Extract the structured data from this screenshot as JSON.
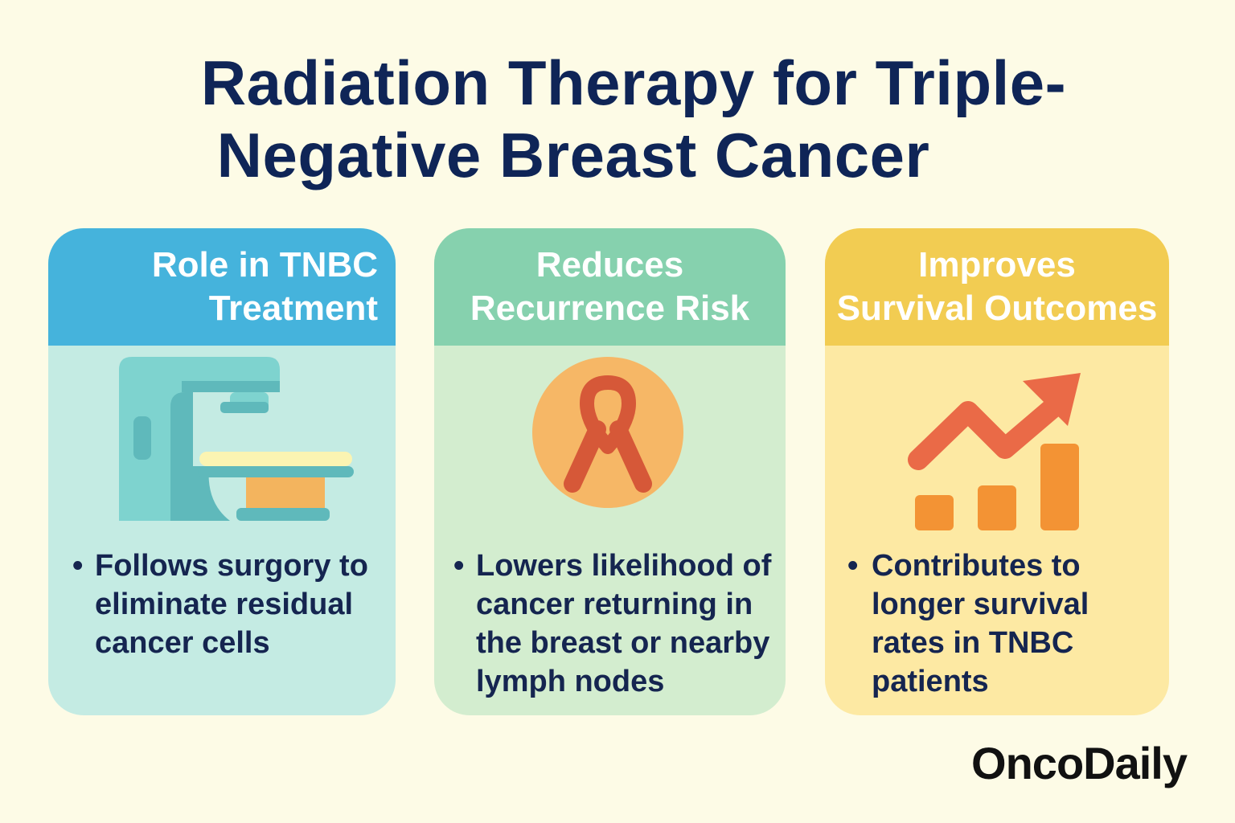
{
  "title": {
    "line1": "Radiation Therapy for Triple-",
    "line2": "Negative Breast Cancer"
  },
  "cards": [
    {
      "heading_line1": "Role in TNBC",
      "heading_line2": "Treatment",
      "icon": "radiotherapy-machine-icon",
      "bullet": "Follows surgory to eliminate residual cancer cells"
    },
    {
      "heading_line1": "Reduces",
      "heading_line2": "Recurrence Risk",
      "icon": "awareness-ribbon-icon",
      "bullet": "Lowers likelihood of cancer returning in the breast or nearby lymph nodes"
    },
    {
      "heading_line1": "Improves",
      "heading_line2": "Survival Outcomes",
      "icon": "rising-chart-icon",
      "bullet": "Contributes to longer survival rates in TNBC patients"
    }
  ],
  "brand": "OncoDaily",
  "colors": {
    "background": "#fdfbe6",
    "title": "#0f2557",
    "card1_header": "#45b3dc",
    "card1_body": "#c4ebe3",
    "card2_header": "#86d1ae",
    "card2_body": "#d3edcf",
    "card3_header": "#f2cc52",
    "card3_body": "#fde9a3"
  }
}
